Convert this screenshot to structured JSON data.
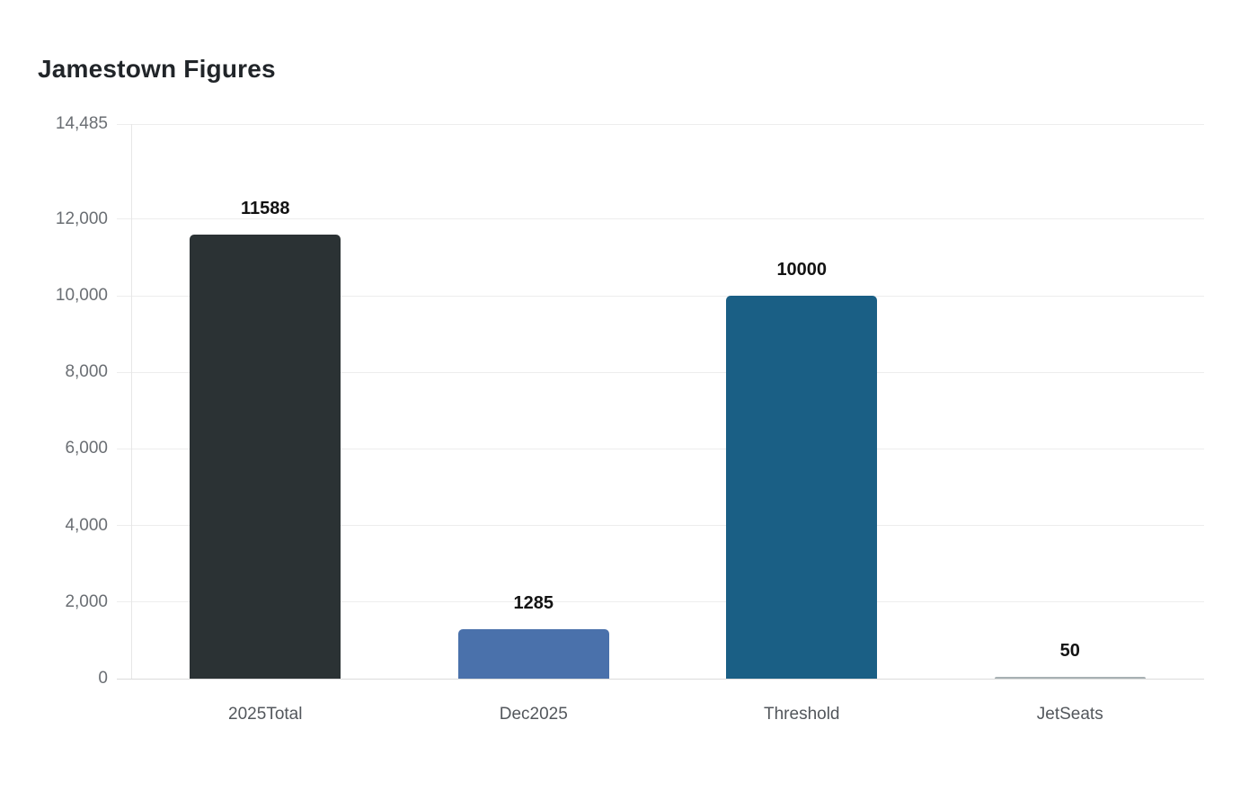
{
  "chart_data": {
    "type": "bar",
    "title": "Jamestown Figures",
    "categories": [
      "2025Total",
      "Dec2025",
      "Threshold",
      "JetSeats"
    ],
    "values": [
      11588,
      1285,
      10000,
      50
    ],
    "data_labels": [
      "11588",
      "1285",
      "10000",
      "50"
    ],
    "bar_colors": [
      "#2b3234",
      "#4a71ab",
      "#1a5f85",
      "#a8b1b4"
    ],
    "xlabel": "",
    "ylabel": "",
    "ylim": [
      0,
      14485
    ],
    "y_ticks": [
      {
        "value": 14485,
        "label": "14,485"
      },
      {
        "value": 12000,
        "label": "12,000"
      },
      {
        "value": 10000,
        "label": "10,000"
      },
      {
        "value": 8000,
        "label": "8,000"
      },
      {
        "value": 6000,
        "label": "6,000"
      },
      {
        "value": 4000,
        "label": "4,000"
      },
      {
        "value": 2000,
        "label": "2,000"
      },
      {
        "value": 0,
        "label": "0"
      }
    ],
    "grid": true,
    "legend_position": "none",
    "colors": {
      "background": "#ffffff",
      "title_text": "#212529",
      "value_label_text": "#131313",
      "y_tick_text": "#6a6e73",
      "category_text": "#53575c",
      "gridline": "#ededed",
      "baseline": "#dcdcdc",
      "axis_line": "#e6e6e6"
    }
  }
}
